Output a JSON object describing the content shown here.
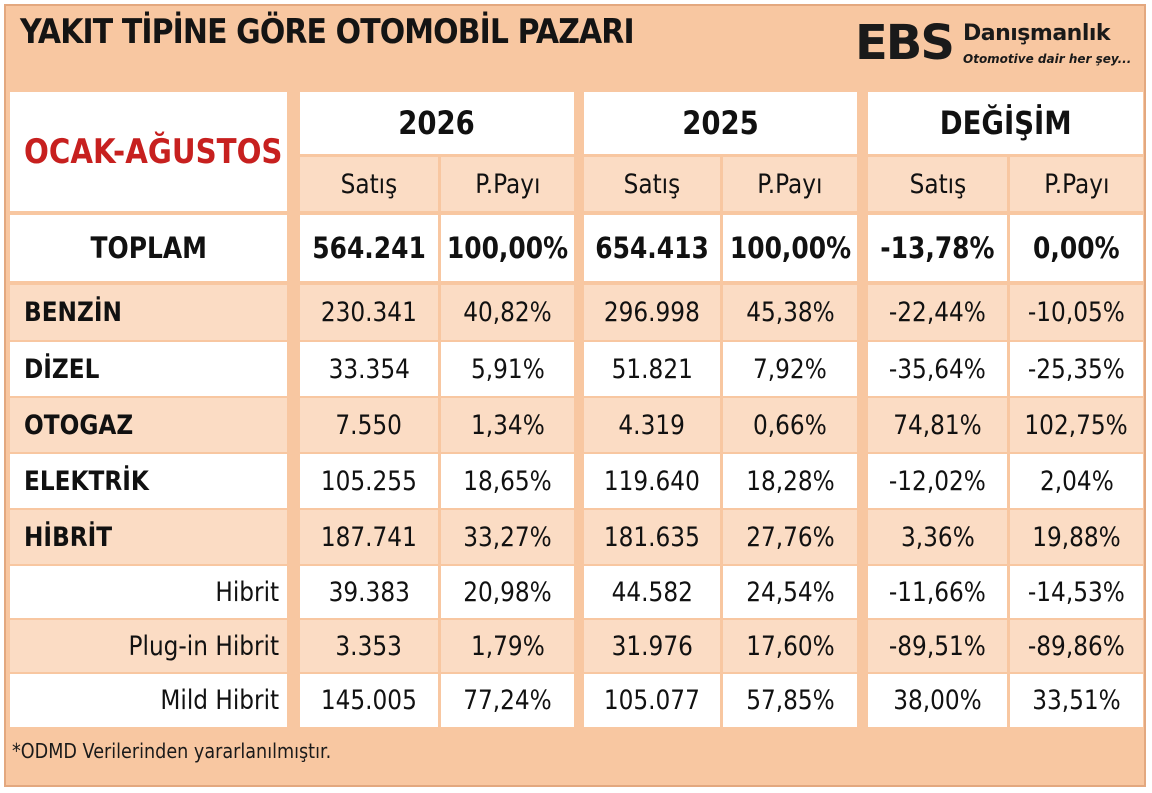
{
  "title": "YAKIT TİPİNE GÖRE OTOMOBİL PAZARI",
  "logo": {
    "mark": "EBS",
    "name": "Danışmanlık",
    "tagline": "Otomotive dair her şey..."
  },
  "period": "OCAK-AĞUSTOS",
  "columns": {
    "groups": [
      "2026",
      "2025",
      "DEĞİŞİM"
    ],
    "sub": [
      "Satış",
      "P.Payı"
    ]
  },
  "total": {
    "label": "TOPLAM",
    "values": [
      "564.241",
      "100,00%",
      "654.413",
      "100,00%",
      "-13,78%",
      "0,00%"
    ]
  },
  "rows": [
    {
      "label": "BENZİN",
      "values": [
        "230.341",
        "40,82%",
        "296.998",
        "45,38%",
        "-22,44%",
        "-10,05%"
      ]
    },
    {
      "label": "DİZEL",
      "values": [
        "33.354",
        "5,91%",
        "51.821",
        "7,92%",
        "-35,64%",
        "-25,35%"
      ]
    },
    {
      "label": "OTOGAZ",
      "values": [
        "7.550",
        "1,34%",
        "4.319",
        "0,66%",
        "74,81%",
        "102,75%"
      ]
    },
    {
      "label": "ELEKTRİK",
      "values": [
        "105.255",
        "18,65%",
        "119.640",
        "18,28%",
        "-12,02%",
        "2,04%"
      ]
    },
    {
      "label": "HİBRİT",
      "values": [
        "187.741",
        "33,27%",
        "181.635",
        "27,76%",
        "3,36%",
        "19,88%"
      ]
    },
    {
      "label": "Hibrit",
      "values": [
        "39.383",
        "20,98%",
        "44.582",
        "24,54%",
        "-11,66%",
        "-14,53%"
      ]
    },
    {
      "label": "Plug-in Hibrit",
      "values": [
        "3.353",
        "1,79%",
        "31.976",
        "17,60%",
        "-89,51%",
        "-89,86%"
      ]
    },
    {
      "label": "Mild Hibrit",
      "values": [
        "145.005",
        "77,24%",
        "105.077",
        "57,85%",
        "38,00%",
        "33,51%"
      ]
    }
  ],
  "footnote": "*ODMD Verilerinden yararlanılmıştır."
}
